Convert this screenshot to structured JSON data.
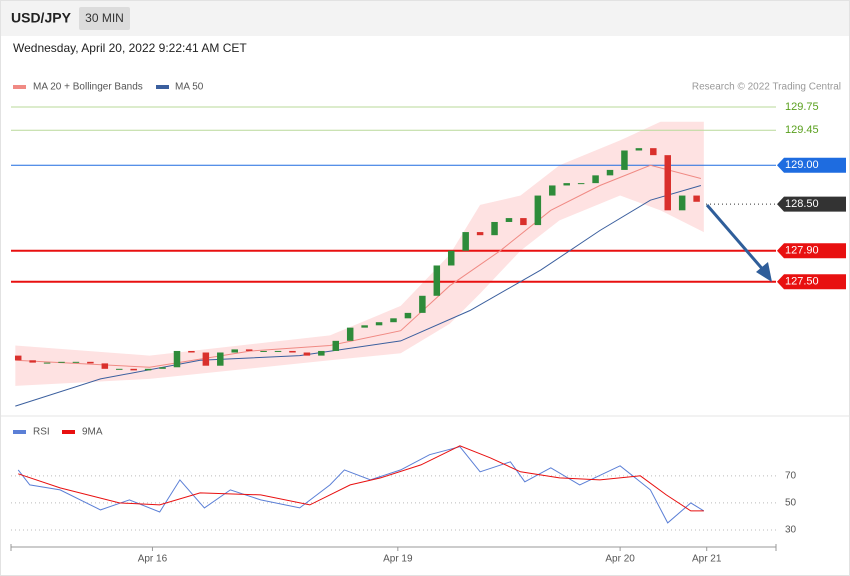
{
  "header": {
    "symbol": "USD/JPY",
    "interval": "30 MIN",
    "timestamp": "Wednesday, April 20, 2022 9:22:41 AM CET",
    "credit": "Research © 2022 Trading Central"
  },
  "chart_data": [
    {
      "type": "candlestick",
      "up_color": "#2e8b3a",
      "down_color": "#d9302c",
      "open": [
        126.55,
        126.49,
        126.46,
        126.46,
        126.47,
        126.47,
        126.45,
        126.38,
        126.38,
        126.36,
        126.38,
        126.4,
        126.61,
        126.59,
        126.42,
        126.59,
        126.63,
        126.61,
        126.61,
        126.61,
        126.59,
        126.55,
        126.61,
        126.74,
        126.91,
        126.94,
        126.98,
        127.03,
        127.1,
        127.32,
        127.71,
        127.9,
        128.14,
        128.1,
        128.27,
        128.32,
        128.23,
        128.61,
        128.74,
        128.77,
        128.77,
        128.87,
        128.94,
        129.19,
        129.22,
        129.13,
        128.42,
        128.61
      ],
      "close": [
        126.49,
        126.46,
        126.46,
        126.47,
        126.47,
        126.45,
        126.38,
        126.38,
        126.36,
        126.38,
        126.4,
        126.61,
        126.59,
        126.42,
        126.59,
        126.63,
        126.61,
        126.61,
        126.61,
        126.59,
        126.55,
        126.61,
        126.74,
        126.91,
        126.94,
        126.98,
        127.03,
        127.1,
        127.32,
        127.71,
        127.9,
        128.14,
        128.1,
        128.27,
        128.32,
        128.23,
        128.61,
        128.74,
        128.77,
        128.77,
        128.87,
        128.94,
        129.19,
        129.22,
        129.13,
        128.42,
        128.61,
        128.53
      ],
      "xlim": [
        -0.5,
        52.5
      ],
      "ylim": [
        125.85,
        129.93
      ],
      "series": [
        {
          "name": "MA 20 + Bollinger Bands",
          "color": "#f08a84",
          "x": [
            -0.2,
            9.1,
            16.1,
            21.6,
            26.5,
            29.9,
            33.4,
            36.9,
            40.3,
            43.8,
            47.3
          ],
          "values": [
            126.49,
            126.4,
            126.61,
            126.68,
            126.87,
            127.45,
            127.9,
            128.42,
            128.74,
            129.0,
            128.83
          ]
        },
        {
          "name": "MA 50",
          "color": "#3b5f9e",
          "x": [
            -0.2,
            5.7,
            12.6,
            19.5,
            26.5,
            31.3,
            36.2,
            40.3,
            43.8,
            47.3
          ],
          "values": [
            125.9,
            126.25,
            126.49,
            126.55,
            126.74,
            127.13,
            127.65,
            128.16,
            128.55,
            128.74
          ]
        }
      ],
      "bands": {
        "color": "#fdd8d8",
        "x": [
          -0.2,
          9.1,
          21.6,
          26.5,
          29.9,
          32.0,
          34.8,
          37.5,
          41.7,
          44.5,
          47.5
        ],
        "upper": [
          126.68,
          126.55,
          126.81,
          127.19,
          127.85,
          128.49,
          128.61,
          129.0,
          129.32,
          129.56,
          129.56
        ],
        "lower": [
          126.16,
          126.25,
          126.49,
          126.58,
          126.96,
          127.35,
          127.9,
          128.29,
          128.61,
          128.42,
          128.14
        ]
      },
      "levels": [
        {
          "value": 129.75,
          "label": "129.75",
          "color": "#5aa01e",
          "line": "thin",
          "box": false
        },
        {
          "value": 129.45,
          "label": "129.45",
          "color": "#5aa01e",
          "line": "thin",
          "box": false
        },
        {
          "value": 129.0,
          "label": "129.00",
          "color": "#1e6ce0",
          "line": "thin",
          "box": true
        },
        {
          "value": 128.5,
          "label": "128.50",
          "color": "#333333",
          "line": "dotted",
          "box": true
        },
        {
          "value": 127.9,
          "label": "127.90",
          "color": "#e81010",
          "line": "thick",
          "box": true
        },
        {
          "value": 127.5,
          "label": "127.50",
          "color": "#e81010",
          "line": "thick",
          "box": true
        }
      ]
    },
    {
      "type": "line",
      "xlim": [
        -0.5,
        52.5
      ],
      "ylim": [
        20,
        95
      ],
      "yticks": [
        30,
        50,
        70
      ],
      "xticks": [
        {
          "value": 9.3,
          "label": "Apr 16"
        },
        {
          "value": 26.3,
          "label": "Apr 19"
        },
        {
          "value": 41.7,
          "label": "Apr 20"
        },
        {
          "value": 47.7,
          "label": "Apr 21"
        }
      ],
      "series": [
        {
          "name": "RSI",
          "color": "#5b7fd6",
          "x": [
            0,
            0.8,
            2.9,
            5.7,
            7.7,
            9.8,
            11.2,
            12.9,
            14.7,
            16.8,
            19.5,
            21.6,
            22.6,
            24.4,
            26.5,
            28.5,
            30.6,
            32.0,
            34.1,
            35.1,
            36.9,
            38.9,
            41.7,
            43.8,
            45.0,
            46.6,
            47.5
          ],
          "values": [
            74.4,
            63.3,
            59.6,
            44.8,
            52.2,
            43.3,
            67.0,
            46.3,
            59.6,
            52.2,
            46.3,
            63.3,
            74.4,
            67.0,
            74.4,
            85.6,
            91.5,
            73.0,
            80.4,
            65.6,
            75.9,
            63.3,
            77.4,
            59.6,
            35.2,
            50.0,
            44.1
          ]
        },
        {
          "name": "9MA",
          "color": "#e81010",
          "x": [
            0,
            2.9,
            7.0,
            9.8,
            12.6,
            16.8,
            20.2,
            23.0,
            25.1,
            27.9,
            30.6,
            32.7,
            34.8,
            37.5,
            40.3,
            43.1,
            44.9,
            46.6,
            47.5
          ],
          "values": [
            71.5,
            61.1,
            50.0,
            48.5,
            57.4,
            55.9,
            48.5,
            63.3,
            68.5,
            78.1,
            92.2,
            83.3,
            73.0,
            68.5,
            67.0,
            70.0,
            55.9,
            44.1,
            44.1
          ]
        }
      ]
    }
  ]
}
